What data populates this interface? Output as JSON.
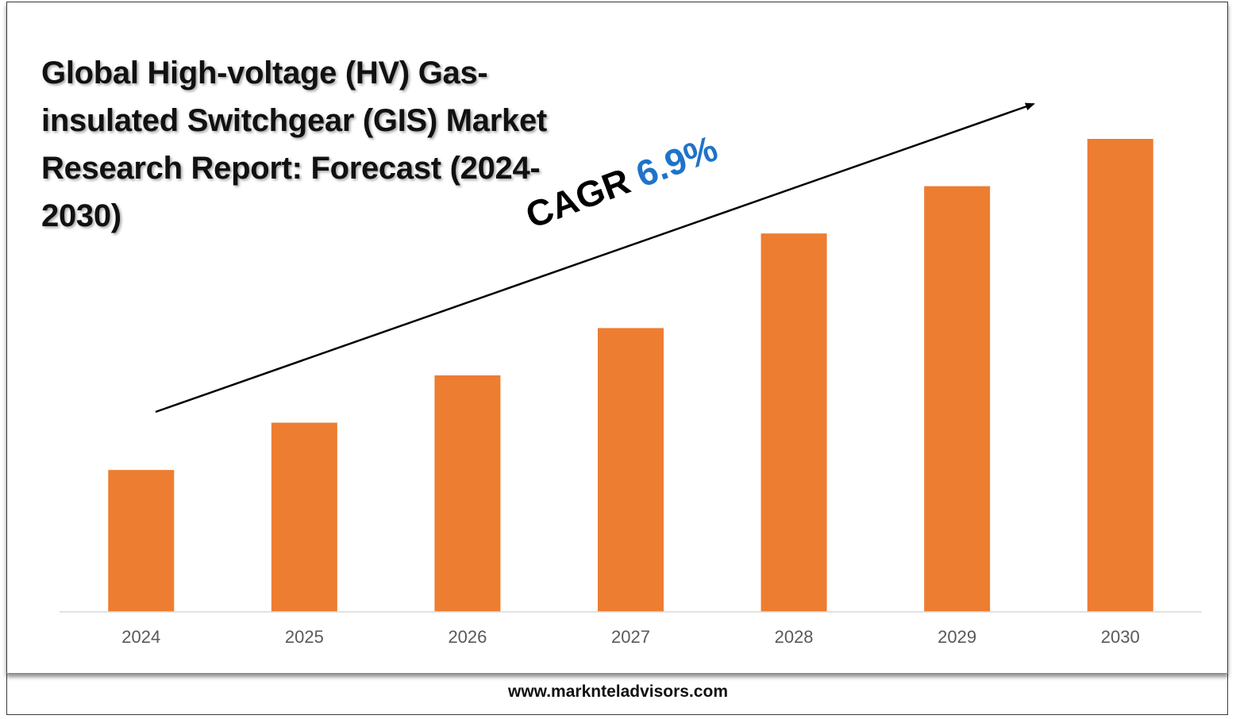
{
  "title": "Global High-voltage (HV) Gas-insulated Switchgear (GIS) Market Research Report: Forecast (2024-2030)",
  "cagr": {
    "label": "CAGR",
    "value": "6.9%"
  },
  "footer": {
    "url": "www.marknteladvisors.com"
  },
  "colors": {
    "bar": "#ed7d31",
    "cagr_value": "#1f73c9",
    "axis": "#d9d9d9"
  },
  "chart_data": {
    "type": "bar",
    "categories": [
      "2024",
      "2025",
      "2026",
      "2027",
      "2028",
      "2029",
      "2030"
    ],
    "values": [
      30,
      40,
      50,
      60,
      80,
      90,
      100
    ],
    "title": "Global High-voltage (HV) Gas-insulated Switchgear (GIS) Market Research Report: Forecast (2024-2030)",
    "xlabel": "",
    "ylabel": "",
    "ylim": [
      0,
      100
    ],
    "grid": false,
    "legend": "none",
    "annotation": "CAGR 6.9%"
  }
}
